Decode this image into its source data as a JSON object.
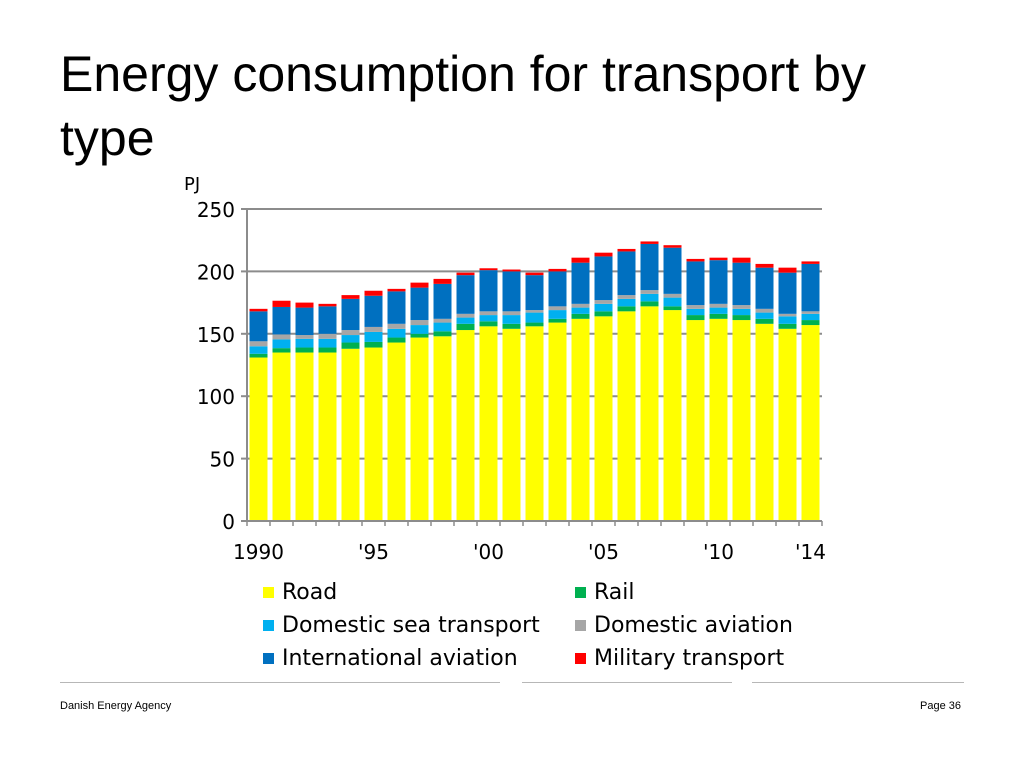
{
  "slide": {
    "title": "Energy consumption for transport by type",
    "footer_left": "Danish Energy Agency",
    "footer_right": "Page 36"
  },
  "chart_data": {
    "type": "bar",
    "stacked": true,
    "title": "Energy consumption for transport by type",
    "ylabel": "PJ",
    "xlabel": "",
    "ylim": [
      0,
      250
    ],
    "yticks": [
      0,
      50,
      100,
      150,
      200,
      250
    ],
    "grid": true,
    "legend_position": "bottom",
    "categories": [
      "1990",
      "1991",
      "1992",
      "1993",
      "1994",
      "1995",
      "1996",
      "1997",
      "1998",
      "1999",
      "2000",
      "2001",
      "2002",
      "2003",
      "2004",
      "2005",
      "2006",
      "2007",
      "2008",
      "2009",
      "2010",
      "2011",
      "2012",
      "2013",
      "2014"
    ],
    "xtick_labels": [
      {
        "category": "1990",
        "label": "1990"
      },
      {
        "category": "1995",
        "label": "'95"
      },
      {
        "category": "2000",
        "label": "'00"
      },
      {
        "category": "2005",
        "label": "'05"
      },
      {
        "category": "2010",
        "label": "'10"
      },
      {
        "category": "2014",
        "label": "'14"
      }
    ],
    "series": [
      {
        "name": "Road",
        "color": "#FFFF00",
        "values": [
          131,
          135,
          135,
          135,
          138,
          139,
          143,
          147,
          148,
          153,
          156,
          154,
          156,
          159,
          162,
          164,
          168,
          172,
          169,
          161,
          162,
          161,
          158,
          154,
          157
        ]
      },
      {
        "name": "Rail",
        "color": "#00B050",
        "values": [
          3,
          3.5,
          4,
          4,
          5,
          4.5,
          4,
          3,
          4,
          5,
          4,
          4,
          3,
          3,
          4,
          4,
          4,
          4,
          3,
          4,
          4,
          4,
          4,
          4,
          4
        ]
      },
      {
        "name": "Domestic sea transport",
        "color": "#00B0F0",
        "values": [
          6,
          7,
          7,
          7,
          6,
          8,
          7,
          7,
          7,
          5,
          5,
          7,
          8,
          7,
          5,
          6,
          6,
          6,
          7,
          5,
          5,
          5,
          5,
          6,
          5
        ]
      },
      {
        "name": "Domestic aviation",
        "color": "#A6A6A6",
        "values": [
          4,
          4,
          3,
          4,
          4,
          4,
          4,
          4,
          3,
          3,
          3,
          3,
          2,
          3,
          3,
          3,
          3,
          3,
          3,
          3,
          3,
          3,
          3,
          2,
          2
        ]
      },
      {
        "name": "International aviation",
        "color": "#0070C0",
        "values": [
          24,
          22,
          22,
          22,
          25,
          25,
          26,
          26,
          28,
          31,
          33,
          32,
          28,
          28,
          33,
          35,
          35,
          37,
          37,
          35,
          35,
          34,
          33,
          33,
          38
        ]
      },
      {
        "name": "Military transport",
        "color": "#FF0000",
        "values": [
          2,
          5,
          4,
          2,
          3,
          4,
          2,
          4,
          4,
          2,
          1.5,
          1.5,
          2,
          2,
          4,
          3,
          2,
          2,
          2,
          2,
          2,
          4,
          3,
          4,
          2
        ]
      }
    ]
  }
}
